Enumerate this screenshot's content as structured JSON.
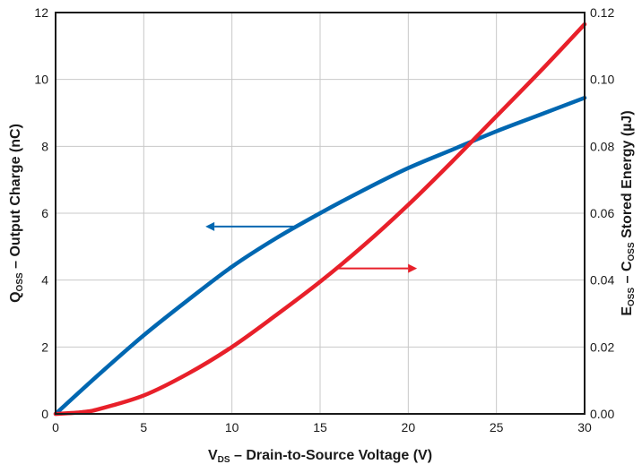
{
  "chart_data": {
    "type": "line",
    "xlabel": {
      "main": "V",
      "sub": "DS",
      "rest": " – Drain-to-Source Voltage (V)"
    },
    "ylabel_left": {
      "main": "Q",
      "sub": "OSS",
      "rest": " – Output Charge (nC)"
    },
    "ylabel_right": {
      "main1": "E",
      "sub1": "OSS",
      "mid": " – C",
      "sub2": "OSS",
      "rest": " Stored Energy (µJ)"
    },
    "xlim": [
      0,
      30
    ],
    "ylim_left": [
      0,
      12
    ],
    "ylim_right": [
      0,
      0.12
    ],
    "x_ticks": [
      "0",
      "5",
      "10",
      "15",
      "20",
      "25",
      "30"
    ],
    "y_left_ticks": [
      "0",
      "2",
      "4",
      "6",
      "8",
      "10",
      "12"
    ],
    "y_right_ticks": [
      "0.00",
      "0.02",
      "0.04",
      "0.06",
      "0.08",
      "0.10",
      "0.12"
    ],
    "grid": true,
    "series": [
      {
        "axis": "left",
        "color": "#0067b1",
        "x": [
          0,
          2.5,
          5,
          7.5,
          10,
          12.5,
          15,
          17.5,
          20,
          22.5,
          25,
          27.5,
          30
        ],
        "y": [
          0,
          1.2,
          2.35,
          3.4,
          4.4,
          5.25,
          6.0,
          6.7,
          7.35,
          7.9,
          8.45,
          8.95,
          9.45
        ]
      },
      {
        "axis": "right",
        "color": "#e8202a",
        "x": [
          0,
          1.5,
          2.5,
          5,
          7.5,
          10,
          12.5,
          15,
          17.5,
          20,
          22.5,
          25,
          27.5,
          30
        ],
        "y": [
          0,
          0.0005,
          0.0015,
          0.0055,
          0.012,
          0.02,
          0.0295,
          0.0395,
          0.0505,
          0.0625,
          0.0755,
          0.089,
          0.1025,
          0.1165
        ]
      }
    ],
    "annotations": [
      {
        "type": "arrow",
        "direction": "left",
        "color": "#0067b1",
        "x1": 13.5,
        "x2": 8.5,
        "y": 5.6,
        "axis": "left"
      },
      {
        "type": "arrow",
        "direction": "right",
        "color": "#e8202a",
        "x1": 16.0,
        "x2": 20.5,
        "y": 0.0435,
        "axis": "right"
      }
    ]
  }
}
